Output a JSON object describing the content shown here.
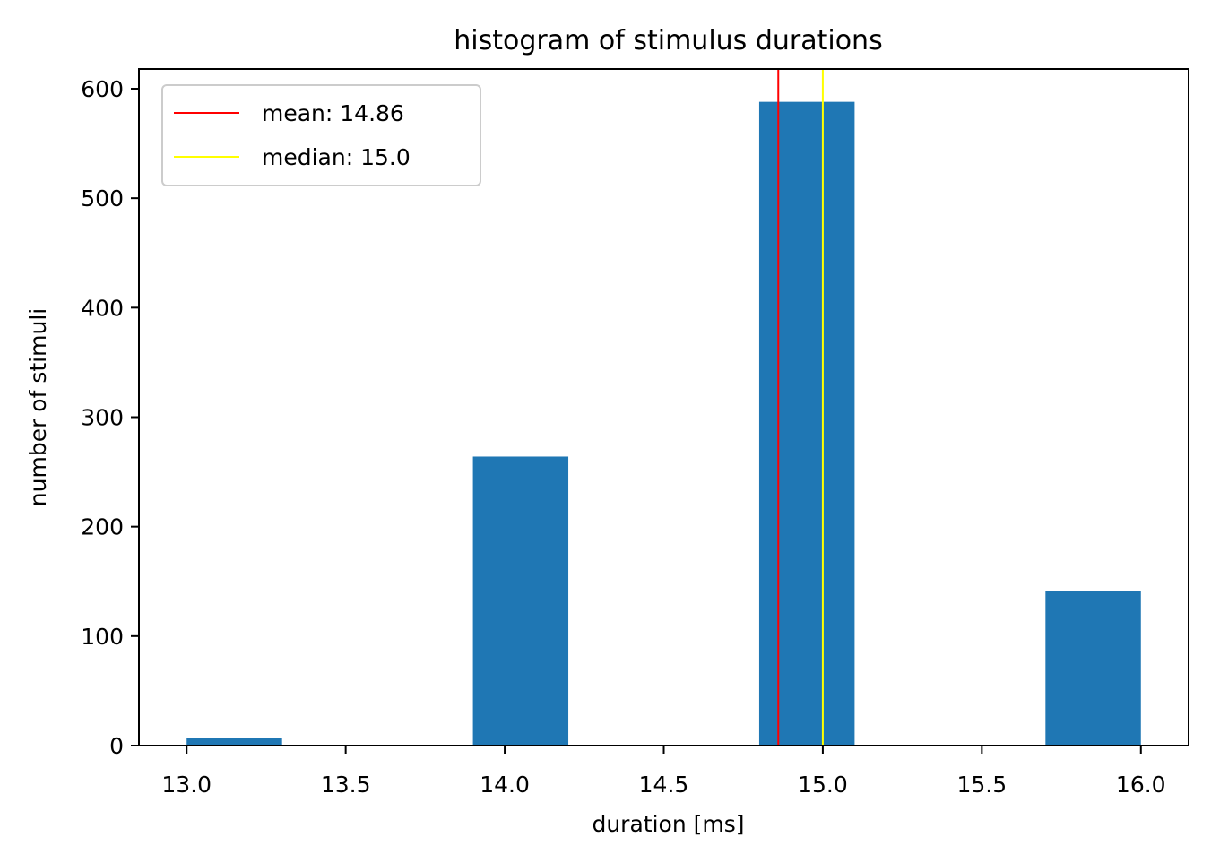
{
  "chart_data": {
    "type": "bar",
    "title": "histogram of stimulus durations",
    "xlabel": "duration [ms]",
    "ylabel": "number of stimuli",
    "xlim": [
      12.85,
      16.15
    ],
    "ylim": [
      0,
      618
    ],
    "x_ticks": [
      13.0,
      13.5,
      14.0,
      14.5,
      15.0,
      15.5,
      16.0
    ],
    "x_tick_labels": [
      "13.0",
      "13.5",
      "14.0",
      "14.5",
      "15.0",
      "15.5",
      "16.0"
    ],
    "y_ticks": [
      0,
      100,
      200,
      300,
      400,
      500,
      600
    ],
    "y_tick_labels": [
      "0",
      "100",
      "200",
      "300",
      "400",
      "500",
      "600"
    ],
    "bins": [
      {
        "start": 13.0,
        "end": 13.3,
        "count": 7
      },
      {
        "start": 13.3,
        "end": 13.6,
        "count": 0
      },
      {
        "start": 13.6,
        "end": 13.9,
        "count": 0
      },
      {
        "start": 13.9,
        "end": 14.2,
        "count": 264
      },
      {
        "start": 14.2,
        "end": 14.5,
        "count": 0
      },
      {
        "start": 14.5,
        "end": 14.8,
        "count": 0
      },
      {
        "start": 14.8,
        "end": 15.1,
        "count": 588
      },
      {
        "start": 15.1,
        "end": 15.4,
        "count": 0
      },
      {
        "start": 15.4,
        "end": 15.7,
        "count": 0
      },
      {
        "start": 15.7,
        "end": 16.0,
        "count": 141
      }
    ],
    "bar_color": "#1f77b4",
    "grid": false,
    "legend_position": "top-left",
    "reference_lines": [
      {
        "label": "mean: 14.86",
        "value": 14.86,
        "color": "#ff0000"
      },
      {
        "label": "median: 15.0",
        "value": 15.0,
        "color": "#ffff00"
      }
    ]
  }
}
